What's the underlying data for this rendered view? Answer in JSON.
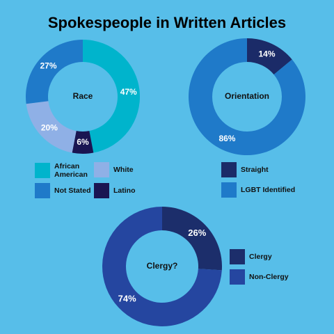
{
  "title": "Spokespeople in Written Articles",
  "chart_data": [
    {
      "type": "donut",
      "center_label": "Race",
      "categories": [
        "African American",
        "Latino",
        "White",
        "Not Stated"
      ],
      "values": [
        47,
        6,
        20,
        27
      ],
      "value_labels": [
        "47%",
        "6%",
        "20%",
        "27%"
      ],
      "colors": [
        "#00b4cc",
        "#1a1552",
        "#8fb0e6",
        "#1f7ac9"
      ]
    },
    {
      "type": "donut",
      "center_label": "Orientation",
      "categories": [
        "Straight",
        "LGBT Identified"
      ],
      "values": [
        14,
        86
      ],
      "value_labels": [
        "14%",
        "86%"
      ],
      "colors": [
        "#1b2b68",
        "#1f7ac9"
      ]
    },
    {
      "type": "donut",
      "center_label": "Clergy?",
      "categories": [
        "Clergy",
        "Non-Clergy"
      ],
      "values": [
        26,
        74
      ],
      "value_labels": [
        "26%",
        "74%"
      ],
      "colors": [
        "#1c2e6b",
        "#2546a0"
      ]
    }
  ]
}
